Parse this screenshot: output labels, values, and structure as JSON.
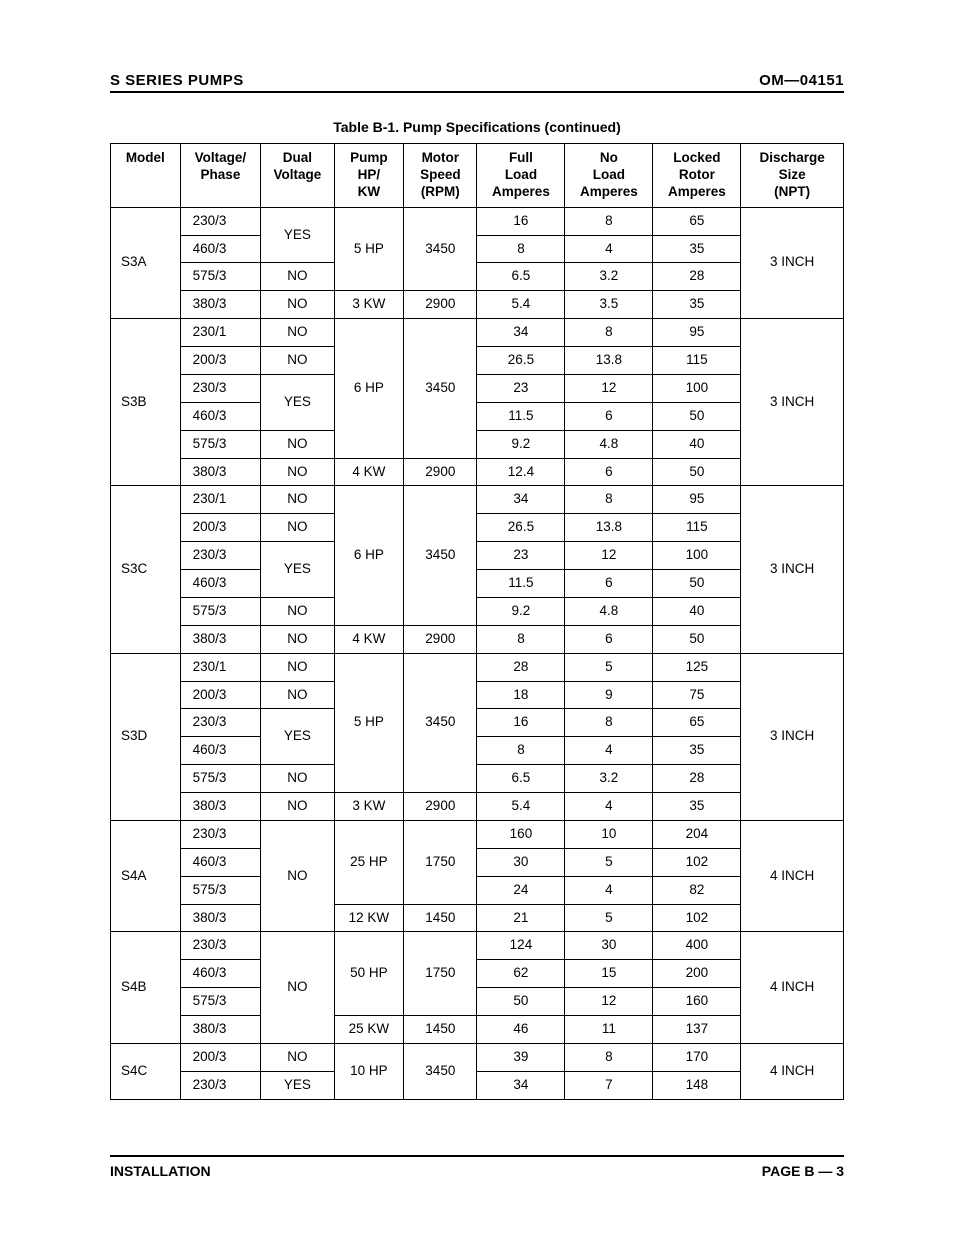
{
  "header": {
    "left": "S SERIES PUMPS",
    "right": "OM—04151"
  },
  "table_title": "Table B-1. Pump Specifications (continued)",
  "columns": [
    "Model",
    "Voltage/\nPhase",
    "Dual\nVoltage",
    "Pump\nHP/\nKW",
    "Motor\nSpeed\n(RPM)",
    "Full\nLoad\nAmperes",
    "No\nLoad\nAmperes",
    "Locked\nRotor\nAmperes",
    "Discharge\nSize\n(NPT)"
  ],
  "groups": [
    {
      "model": "S3A",
      "discharge": "3 INCH",
      "rows": [
        {
          "vp": "230/3",
          "dv": {
            "t": "YES",
            "span": 2
          },
          "hp": {
            "t": "5 HP",
            "span": 3
          },
          "rpm": {
            "t": "3450",
            "span": 3
          },
          "fla": "16",
          "nla": "8",
          "lra": "65"
        },
        {
          "vp": "460/3",
          "fla": "8",
          "nla": "4",
          "lra": "35"
        },
        {
          "vp": "575/3",
          "dv": {
            "t": "NO"
          },
          "fla": "6.5",
          "nla": "3.2",
          "lra": "28"
        },
        {
          "vp": "380/3",
          "dv": {
            "t": "NO"
          },
          "hp": {
            "t": "3 KW"
          },
          "rpm": {
            "t": "2900"
          },
          "fla": "5.4",
          "nla": "3.5",
          "lra": "35"
        }
      ]
    },
    {
      "model": "S3B",
      "discharge": "3 INCH",
      "rows": [
        {
          "vp": "230/1",
          "dv": {
            "t": "NO"
          },
          "hp": {
            "t": "6 HP",
            "span": 5
          },
          "rpm": {
            "t": "3450",
            "span": 5
          },
          "fla": "34",
          "nla": "8",
          "lra": "95"
        },
        {
          "vp": "200/3",
          "dv": {
            "t": "NO"
          },
          "fla": "26.5",
          "nla": "13.8",
          "lra": "115"
        },
        {
          "vp": "230/3",
          "dv": {
            "t": "YES",
            "span": 2
          },
          "fla": "23",
          "nla": "12",
          "lra": "100"
        },
        {
          "vp": "460/3",
          "fla": "11.5",
          "nla": "6",
          "lra": "50"
        },
        {
          "vp": "575/3",
          "dv": {
            "t": "NO"
          },
          "fla": "9.2",
          "nla": "4.8",
          "lra": "40"
        },
        {
          "vp": "380/3",
          "dv": {
            "t": "NO"
          },
          "hp": {
            "t": "4 KW"
          },
          "rpm": {
            "t": "2900"
          },
          "fla": "12.4",
          "nla": "6",
          "lra": "50"
        }
      ]
    },
    {
      "model": "S3C",
      "discharge": "3 INCH",
      "rows": [
        {
          "vp": "230/1",
          "dv": {
            "t": "NO"
          },
          "hp": {
            "t": "6 HP",
            "span": 5
          },
          "rpm": {
            "t": "3450",
            "span": 5
          },
          "fla": "34",
          "nla": "8",
          "lra": "95"
        },
        {
          "vp": "200/3",
          "dv": {
            "t": "NO"
          },
          "fla": "26.5",
          "nla": "13.8",
          "lra": "115"
        },
        {
          "vp": "230/3",
          "dv": {
            "t": "YES",
            "span": 2
          },
          "fla": "23",
          "nla": "12",
          "lra": "100"
        },
        {
          "vp": "460/3",
          "fla": "11.5",
          "nla": "6",
          "lra": "50"
        },
        {
          "vp": "575/3",
          "dv": {
            "t": "NO"
          },
          "fla": "9.2",
          "nla": "4.8",
          "lra": "40"
        },
        {
          "vp": "380/3",
          "dv": {
            "t": "NO"
          },
          "hp": {
            "t": "4 KW"
          },
          "rpm": {
            "t": "2900"
          },
          "fla": "8",
          "nla": "6",
          "lra": "50"
        }
      ]
    },
    {
      "model": "S3D",
      "discharge": "3 INCH",
      "rows": [
        {
          "vp": "230/1",
          "dv": {
            "t": "NO"
          },
          "hp": {
            "t": "5 HP",
            "span": 5
          },
          "rpm": {
            "t": "3450",
            "span": 5
          },
          "fla": "28",
          "nla": "5",
          "lra": "125"
        },
        {
          "vp": "200/3",
          "dv": {
            "t": "NO"
          },
          "fla": "18",
          "nla": "9",
          "lra": "75"
        },
        {
          "vp": "230/3",
          "dv": {
            "t": "YES",
            "span": 2
          },
          "fla": "16",
          "nla": "8",
          "lra": "65"
        },
        {
          "vp": "460/3",
          "fla": "8",
          "nla": "4",
          "lra": "35"
        },
        {
          "vp": "575/3",
          "dv": {
            "t": "NO"
          },
          "fla": "6.5",
          "nla": "3.2",
          "lra": "28"
        },
        {
          "vp": "380/3",
          "dv": {
            "t": "NO"
          },
          "hp": {
            "t": "3 KW"
          },
          "rpm": {
            "t": "2900"
          },
          "fla": "5.4",
          "nla": "4",
          "lra": "35"
        }
      ]
    },
    {
      "model": "S4A",
      "discharge": "4 INCH",
      "rows": [
        {
          "vp": "230/3",
          "dv": {
            "t": "NO",
            "span": 4
          },
          "hp": {
            "t": "25 HP",
            "span": 3
          },
          "rpm": {
            "t": "1750",
            "span": 3
          },
          "fla": "160",
          "nla": "10",
          "lra": "204"
        },
        {
          "vp": "460/3",
          "fla": "30",
          "nla": "5",
          "lra": "102"
        },
        {
          "vp": "575/3",
          "fla": "24",
          "nla": "4",
          "lra": "82"
        },
        {
          "vp": "380/3",
          "hp": {
            "t": "12 KW"
          },
          "rpm": {
            "t": "1450"
          },
          "fla": "21",
          "nla": "5",
          "lra": "102"
        }
      ]
    },
    {
      "model": "S4B",
      "discharge": "4 INCH",
      "rows": [
        {
          "vp": "230/3",
          "dv": {
            "t": "NO",
            "span": 4
          },
          "hp": {
            "t": "50 HP",
            "span": 3
          },
          "rpm": {
            "t": "1750",
            "span": 3
          },
          "fla": "124",
          "nla": "30",
          "lra": "400"
        },
        {
          "vp": "460/3",
          "fla": "62",
          "nla": "15",
          "lra": "200"
        },
        {
          "vp": "575/3",
          "fla": "50",
          "nla": "12",
          "lra": "160"
        },
        {
          "vp": "380/3",
          "hp": {
            "t": "25 KW"
          },
          "rpm": {
            "t": "1450"
          },
          "fla": "46",
          "nla": "11",
          "lra": "137"
        }
      ]
    },
    {
      "model": "S4C",
      "discharge": "4 INCH",
      "rows": [
        {
          "vp": "200/3",
          "dv": {
            "t": "NO"
          },
          "hp": {
            "t": "10 HP",
            "span": 2
          },
          "rpm": {
            "t": "3450",
            "span": 2
          },
          "fla": "39",
          "nla": "8",
          "lra": "170"
        },
        {
          "vp": "230/3",
          "dv": {
            "t": "YES"
          },
          "fla": "34",
          "nla": "7",
          "lra": "148"
        }
      ]
    }
  ],
  "footer": {
    "left": "INSTALLATION",
    "right": "PAGE B — 3"
  }
}
